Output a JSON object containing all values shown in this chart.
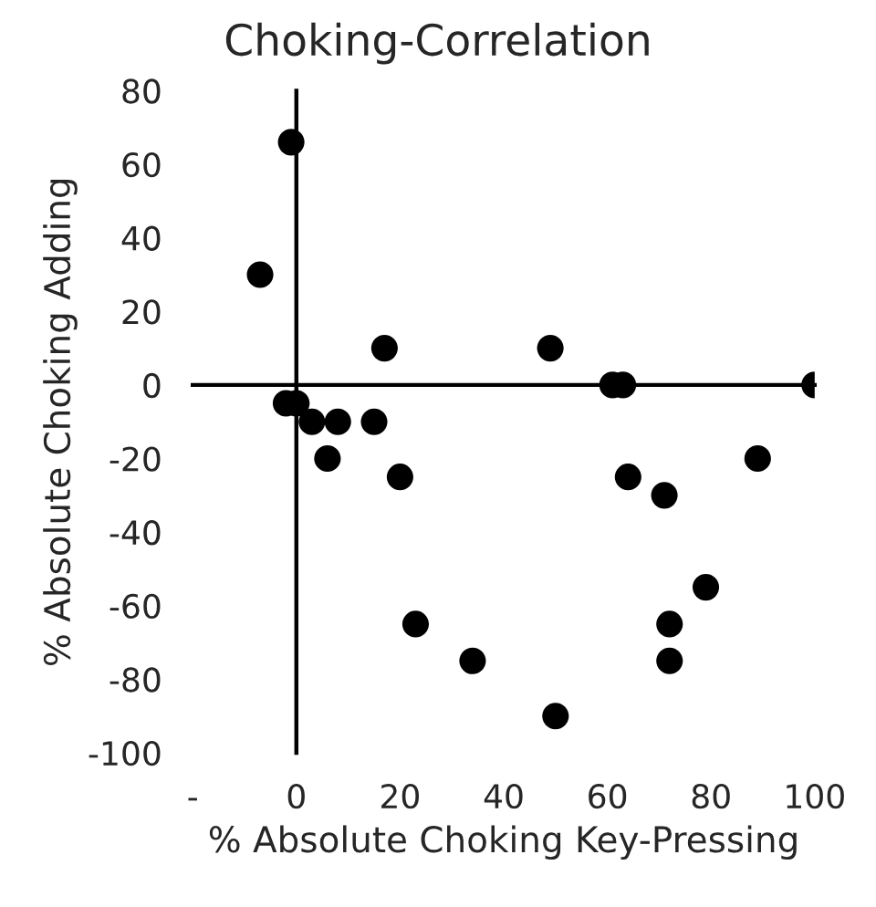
{
  "chart_data": {
    "type": "scatter",
    "title": "Choking-Correlation",
    "xlabel": "% Absolute Choking Key-Pressing",
    "ylabel": "% Absolute Choking Adding",
    "x": [
      -1,
      -7,
      17,
      49,
      61,
      63,
      100,
      -2,
      0,
      3,
      8,
      15,
      6,
      20,
      64,
      71,
      89,
      79,
      72,
      72,
      23,
      34,
      50
    ],
    "series": [
      {
        "color": "#000000",
        "values": [
          66,
          30,
          10,
          10,
          0,
          0,
          0,
          -5,
          -5,
          -10,
          -10,
          -10,
          -20,
          -25,
          -25,
          -30,
          -20,
          -55,
          -65,
          -75,
          -65,
          -75,
          -90
        ]
      }
    ],
    "xlim": [
      -20,
      100
    ],
    "ylim": [
      -100,
      80
    ],
    "xticks": [
      {
        "value": -20,
        "label": "-"
      },
      0,
      20,
      40,
      60,
      80,
      100
    ],
    "yticks": [
      -100,
      -80,
      -60,
      -40,
      -20,
      0,
      20,
      40,
      60,
      80
    ],
    "marker": "circle"
  }
}
